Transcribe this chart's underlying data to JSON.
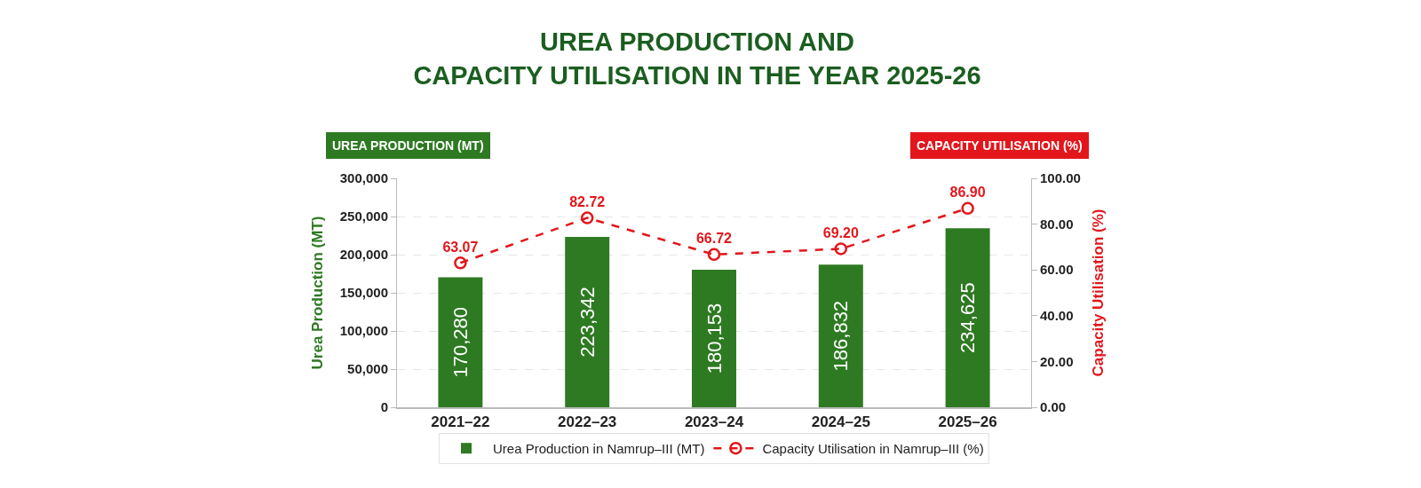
{
  "chart_data": {
    "type": "bar",
    "title": "UREA PRODUCTION AND\nCAPACITY UTILISATION IN THE YEAR 2025-26",
    "annotations": [
      "UREA PRODUCTION (MT)",
      "CAPACITY UTILISATION (%)"
    ],
    "ylabel": "Urea Production (MT)",
    "y2label": "Capacity Utilisation (%)",
    "categories": [
      "2021–22",
      "2022–23",
      "2023–24",
      "2024–25",
      "2025–26"
    ],
    "series": [
      {
        "name": "Urea Production in Namrup–III (MT)",
        "color": "#2e7a22",
        "values": [
          170280,
          223342,
          180153,
          186832,
          234625
        ],
        "value_labels": [
          "170,280",
          "223,342",
          "180,153",
          "186,832",
          "234,625"
        ]
      },
      {
        "name": "Capacity Utilisation in Namrup–III (%)",
        "type": "line",
        "axis": "y2",
        "color": "#e3161b",
        "values": [
          63.07,
          82.72,
          66.72,
          69.2,
          86.9
        ],
        "value_labels": [
          "63.07",
          "82.72",
          "66.72",
          "69.20",
          "86.90"
        ]
      }
    ],
    "ylim": [
      0,
      300000
    ],
    "yticks": [
      0,
      {
        "value": 50000,
        "label": "50,000"
      },
      {
        "value": 100000,
        "label": "100,000"
      },
      {
        "value": 150000,
        "label": "150,000"
      },
      {
        "value": 200000,
        "label": "200,000"
      },
      {
        "value": 250000,
        "label": "250,000"
      },
      {
        "value": 300000,
        "label": "300,000"
      }
    ],
    "y2lim": [
      0,
      100
    ],
    "y2ticks": [
      {
        "value": 0,
        "label": "0.00"
      },
      {
        "value": 20,
        "label": "20.00"
      },
      {
        "value": 40,
        "label": "40.00"
      },
      {
        "value": 60,
        "label": "60.00"
      },
      {
        "value": 80,
        "label": "80.00"
      },
      {
        "value": 100,
        "label": "100.00"
      }
    ],
    "grid": "y",
    "legend": "bottom",
    "marker": "circle",
    "line_style": "dashed"
  }
}
